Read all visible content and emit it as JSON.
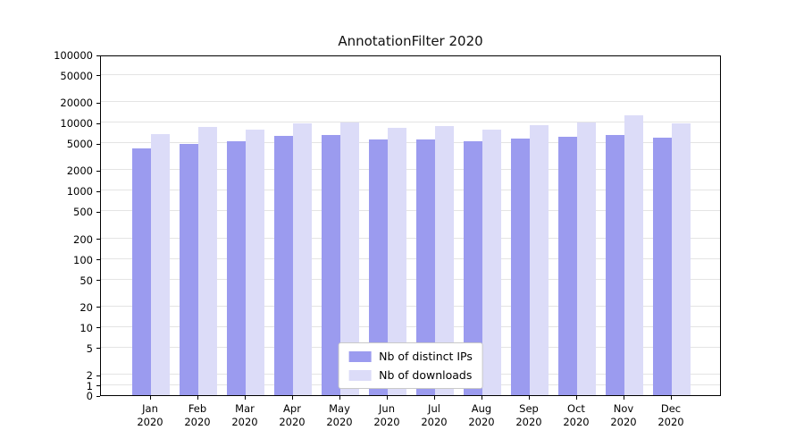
{
  "chart_data": {
    "type": "bar",
    "title": "AnnotationFilter 2020",
    "categories": [
      "Jan",
      "Feb",
      "Mar",
      "Apr",
      "May",
      "Jun",
      "Jul",
      "Aug",
      "Sep",
      "Oct",
      "Nov",
      "Dec"
    ],
    "year_label": "2020",
    "series": [
      {
        "name": "Nb of distinct IPs",
        "color": "#9b9bef",
        "values": [
          4200,
          4900,
          5300,
          6400,
          6500,
          5700,
          5700,
          5400,
          5800,
          6200,
          6600,
          6000
        ]
      },
      {
        "name": "Nb of downloads",
        "color": "#dcdcf8",
        "values": [
          6700,
          8600,
          7900,
          9800,
          10000,
          8400,
          8900,
          7900,
          9200,
          10000,
          13000,
          9800
        ]
      }
    ],
    "yticks": [
      0,
      1,
      2,
      5,
      10,
      20,
      50,
      100,
      200,
      500,
      1000,
      2000,
      5000,
      10000,
      20000,
      50000,
      100000
    ],
    "ylim": [
      0,
      100000
    ],
    "yscale": "symlog",
    "linthresh": 2,
    "grid": true,
    "legend_position": "bottom-center",
    "gridline_color": "#e4e4e4",
    "axis_color": "#000000"
  }
}
